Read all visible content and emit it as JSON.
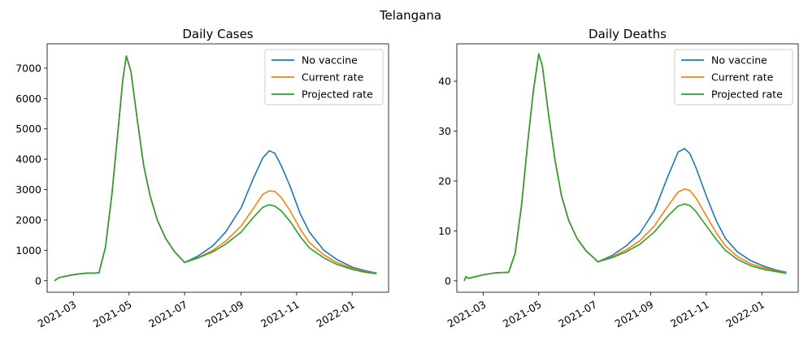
{
  "figure_title": "Telangana",
  "colors": {
    "No vaccine": "#1f77b4",
    "Current rate": "#ff7f0e",
    "Projected rate": "#2ca02c"
  },
  "chart_data": [
    {
      "type": "line",
      "title": "Daily Cases",
      "xlabel": "",
      "ylabel": "",
      "x_range": [
        "2021-01-31",
        "2022-02-10"
      ],
      "ylim": [
        -380,
        7800
      ],
      "x_ticks": [
        "2021-03",
        "2021-05",
        "2021-07",
        "2021-09",
        "2021-11",
        "2022-01"
      ],
      "y_ticks": [
        "0",
        "1000",
        "2000",
        "3000",
        "4000",
        "5000",
        "6000",
        "7000"
      ],
      "y_tick_values": [
        0,
        1000,
        2000,
        3000,
        4000,
        5000,
        6000,
        7000
      ],
      "grid": false,
      "legend": "upper right",
      "series": [
        {
          "name": "No vaccine",
          "x": [
            "2021-02-08",
            "2021-02-13",
            "2021-03-01",
            "2021-03-15",
            "2021-03-22",
            "2021-03-29",
            "2021-04-05",
            "2021-04-12",
            "2021-04-19",
            "2021-04-24",
            "2021-04-28",
            "2021-05-03",
            "2021-05-10",
            "2021-05-17",
            "2021-05-24",
            "2021-06-01",
            "2021-06-10",
            "2021-06-20",
            "2021-07-01",
            "2021-07-15",
            "2021-08-01",
            "2021-08-15",
            "2021-09-01",
            "2021-09-15",
            "2021-09-25",
            "2021-10-02",
            "2021-10-08",
            "2021-10-15",
            "2021-10-25",
            "2021-11-05",
            "2021-11-15",
            "2021-12-01",
            "2021-12-15",
            "2022-01-01",
            "2022-01-15",
            "2022-01-28"
          ],
          "values": [
            0,
            100,
            200,
            250,
            250,
            260,
            1100,
            2800,
            5000,
            6600,
            7400,
            6900,
            5300,
            3800,
            2800,
            2000,
            1400,
            950,
            600,
            800,
            1150,
            1600,
            2400,
            3400,
            4050,
            4280,
            4200,
            3800,
            3100,
            2200,
            1600,
            1000,
            700,
            450,
            330,
            250
          ]
        },
        {
          "name": "Current rate",
          "x": [
            "2021-02-08",
            "2021-02-13",
            "2021-03-01",
            "2021-03-15",
            "2021-03-22",
            "2021-03-29",
            "2021-04-05",
            "2021-04-12",
            "2021-04-19",
            "2021-04-24",
            "2021-04-28",
            "2021-05-03",
            "2021-05-10",
            "2021-05-17",
            "2021-05-24",
            "2021-06-01",
            "2021-06-10",
            "2021-06-20",
            "2021-07-01",
            "2021-07-15",
            "2021-08-01",
            "2021-08-15",
            "2021-09-01",
            "2021-09-15",
            "2021-09-25",
            "2021-10-02",
            "2021-10-08",
            "2021-10-15",
            "2021-10-25",
            "2021-11-05",
            "2021-11-15",
            "2021-12-01",
            "2021-12-15",
            "2022-01-01",
            "2022-01-15",
            "2022-01-28"
          ],
          "values": [
            0,
            100,
            200,
            250,
            250,
            260,
            1100,
            2800,
            5000,
            6600,
            7400,
            6900,
            5300,
            3800,
            2800,
            2000,
            1400,
            950,
            600,
            750,
            1000,
            1300,
            1800,
            2400,
            2850,
            2960,
            2940,
            2750,
            2300,
            1700,
            1250,
            850,
            600,
            400,
            300,
            240
          ]
        },
        {
          "name": "Projected rate",
          "x": [
            "2021-02-08",
            "2021-02-13",
            "2021-03-01",
            "2021-03-15",
            "2021-03-22",
            "2021-03-29",
            "2021-04-05",
            "2021-04-12",
            "2021-04-19",
            "2021-04-24",
            "2021-04-28",
            "2021-05-03",
            "2021-05-10",
            "2021-05-17",
            "2021-05-24",
            "2021-06-01",
            "2021-06-10",
            "2021-06-20",
            "2021-07-01",
            "2021-07-15",
            "2021-08-01",
            "2021-08-15",
            "2021-09-01",
            "2021-09-15",
            "2021-09-25",
            "2021-10-02",
            "2021-10-08",
            "2021-10-15",
            "2021-10-25",
            "2021-11-05",
            "2021-11-15",
            "2021-12-01",
            "2021-12-15",
            "2022-01-01",
            "2022-01-15",
            "2022-01-28"
          ],
          "values": [
            0,
            100,
            200,
            250,
            250,
            260,
            1100,
            2800,
            5000,
            6600,
            7400,
            6900,
            5300,
            3800,
            2800,
            2000,
            1400,
            950,
            600,
            740,
            950,
            1200,
            1600,
            2100,
            2420,
            2500,
            2460,
            2300,
            1950,
            1450,
            1080,
            750,
            540,
            370,
            280,
            230
          ]
        }
      ]
    },
    {
      "type": "line",
      "title": "Daily Deaths",
      "xlabel": "",
      "ylabel": "",
      "x_range": [
        "2021-01-31",
        "2022-02-10"
      ],
      "ylim": [
        -2.3,
        47.5
      ],
      "x_ticks": [
        "2021-03",
        "2021-05",
        "2021-07",
        "2021-09",
        "2021-11",
        "2022-01"
      ],
      "y_ticks": [
        "0",
        "10",
        "20",
        "30",
        "40"
      ],
      "y_tick_values": [
        0,
        10,
        20,
        30,
        40
      ],
      "grid": false,
      "legend": "upper right",
      "series": [
        {
          "name": "No vaccine",
          "x": [
            "2021-02-08",
            "2021-02-10",
            "2021-02-13",
            "2021-03-01",
            "2021-03-15",
            "2021-03-29",
            "2021-04-05",
            "2021-04-12",
            "2021-04-19",
            "2021-04-25",
            "2021-05-01",
            "2021-05-05",
            "2021-05-12",
            "2021-05-19",
            "2021-05-26",
            "2021-06-03",
            "2021-06-12",
            "2021-06-22",
            "2021-07-05",
            "2021-07-20",
            "2021-08-05",
            "2021-08-20",
            "2021-09-05",
            "2021-09-20",
            "2021-10-01",
            "2021-10-08",
            "2021-10-14",
            "2021-10-21",
            "2021-11-01",
            "2021-11-12",
            "2021-11-22",
            "2021-12-05",
            "2021-12-20",
            "2022-01-05",
            "2022-01-18",
            "2022-01-28"
          ],
          "values": [
            0,
            0.8,
            0.5,
            1.2,
            1.6,
            1.7,
            5.5,
            15,
            28,
            38,
            45.5,
            43,
            33,
            24,
            17,
            12,
            8.5,
            6,
            3.8,
            5,
            7,
            9.5,
            14,
            21,
            25.8,
            26.5,
            25.5,
            22.5,
            17,
            12,
            8.5,
            5.8,
            4,
            2.8,
            2.1,
            1.7
          ]
        },
        {
          "name": "Current rate",
          "x": [
            "2021-02-08",
            "2021-02-10",
            "2021-02-13",
            "2021-03-01",
            "2021-03-15",
            "2021-03-29",
            "2021-04-05",
            "2021-04-12",
            "2021-04-19",
            "2021-04-25",
            "2021-05-01",
            "2021-05-05",
            "2021-05-12",
            "2021-05-19",
            "2021-05-26",
            "2021-06-03",
            "2021-06-12",
            "2021-06-22",
            "2021-07-05",
            "2021-07-20",
            "2021-08-05",
            "2021-08-20",
            "2021-09-05",
            "2021-09-20",
            "2021-10-01",
            "2021-10-08",
            "2021-10-14",
            "2021-10-21",
            "2021-11-01",
            "2021-11-12",
            "2021-11-22",
            "2021-12-05",
            "2021-12-20",
            "2022-01-05",
            "2022-01-18",
            "2022-01-28"
          ],
          "values": [
            0,
            0.8,
            0.5,
            1.2,
            1.6,
            1.7,
            5.5,
            15,
            28,
            38,
            45.5,
            43,
            33,
            24,
            17,
            12,
            8.5,
            6,
            3.8,
            4.7,
            6.2,
            8,
            11,
            15,
            17.8,
            18.4,
            18.1,
            16.5,
            13,
            9.6,
            7,
            4.9,
            3.4,
            2.5,
            1.9,
            1.6
          ]
        },
        {
          "name": "Projected rate",
          "x": [
            "2021-02-08",
            "2021-02-10",
            "2021-02-13",
            "2021-03-01",
            "2021-03-15",
            "2021-03-29",
            "2021-04-05",
            "2021-04-12",
            "2021-04-19",
            "2021-04-25",
            "2021-05-01",
            "2021-05-05",
            "2021-05-12",
            "2021-05-19",
            "2021-05-26",
            "2021-06-03",
            "2021-06-12",
            "2021-06-22",
            "2021-07-05",
            "2021-07-20",
            "2021-08-05",
            "2021-08-20",
            "2021-09-05",
            "2021-09-20",
            "2021-10-01",
            "2021-10-08",
            "2021-10-14",
            "2021-10-21",
            "2021-11-01",
            "2021-11-12",
            "2021-11-22",
            "2021-12-05",
            "2021-12-20",
            "2022-01-05",
            "2022-01-18",
            "2022-01-28"
          ],
          "values": [
            0,
            0.8,
            0.5,
            1.2,
            1.6,
            1.7,
            5.5,
            15,
            28,
            38,
            45.5,
            43,
            33,
            24,
            17,
            12,
            8.5,
            6,
            3.8,
            4.6,
            5.8,
            7.3,
            9.8,
            13,
            15,
            15.4,
            15.1,
            13.8,
            11,
            8.3,
            6.1,
            4.3,
            3,
            2.2,
            1.8,
            1.5
          ]
        }
      ]
    }
  ]
}
